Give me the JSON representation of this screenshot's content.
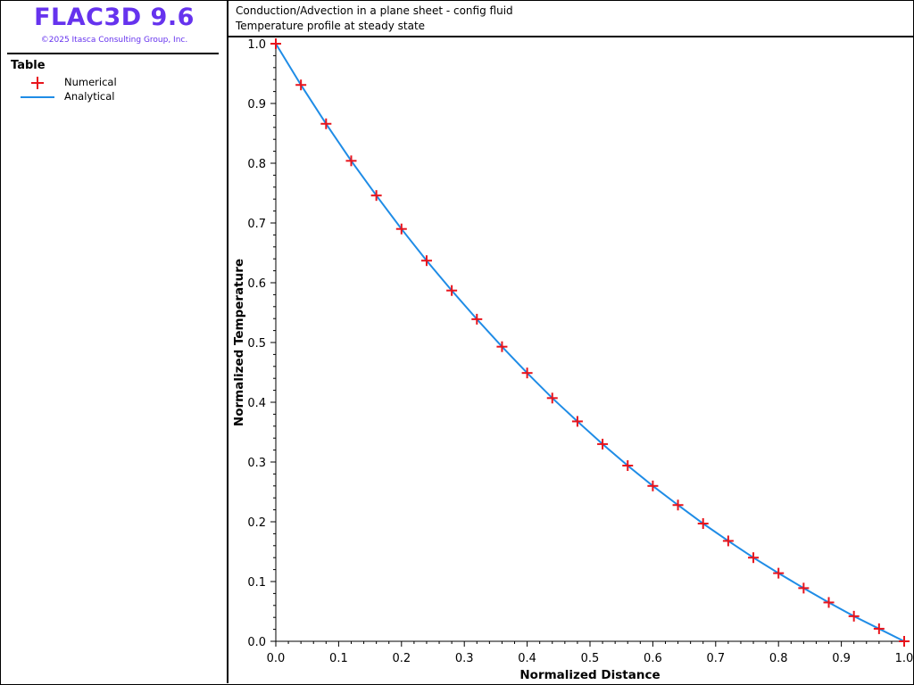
{
  "brand": {
    "title": "FLAC3D 9.6",
    "copyright": "©2025 Itasca Consulting Group, Inc.",
    "color": "#6633ee"
  },
  "header": {
    "title": "Conduction/Advection in a plane sheet - config fluid",
    "subtitle": "Temperature profile at steady state"
  },
  "legend": {
    "heading": "Table",
    "items": [
      {
        "label": "Numerical",
        "symbol": "plus",
        "color": "#e8141c"
      },
      {
        "label": "Analytical",
        "symbol": "line",
        "color": "#1f8ce6"
      }
    ]
  },
  "chart_data": {
    "type": "line",
    "xlabel": "Normalized Distance",
    "ylabel": "Normalized Temperature",
    "xlim": [
      0,
      1
    ],
    "ylim": [
      0,
      1
    ],
    "x_ticks": [
      "0.0",
      "0.1",
      "0.2",
      "0.3",
      "0.4",
      "0.5",
      "0.6",
      "0.7",
      "0.8",
      "0.9",
      "1.0"
    ],
    "y_ticks": [
      "0.0",
      "0.1",
      "0.2",
      "0.3",
      "0.4",
      "0.5",
      "0.6",
      "0.7",
      "0.8",
      "0.9",
      "1.0"
    ],
    "grid": false,
    "series": [
      {
        "name": "Numerical",
        "marker": "plus",
        "color": "#e8141c",
        "x": [
          0.0,
          0.04,
          0.08,
          0.12,
          0.16,
          0.2,
          0.24,
          0.28,
          0.32,
          0.36,
          0.4,
          0.44,
          0.48,
          0.52,
          0.56,
          0.6,
          0.64,
          0.68,
          0.72,
          0.76,
          0.8,
          0.84,
          0.88,
          0.92,
          0.96,
          1.0
        ],
        "y": [
          1.0,
          0.931,
          0.866,
          0.804,
          0.746,
          0.69,
          0.637,
          0.587,
          0.539,
          0.493,
          0.449,
          0.407,
          0.368,
          0.33,
          0.294,
          0.26,
          0.228,
          0.197,
          0.168,
          0.14,
          0.114,
          0.089,
          0.065,
          0.042,
          0.021,
          0.0
        ]
      },
      {
        "name": "Analytical",
        "marker": "none",
        "color": "#1f8ce6",
        "x": [
          0.0,
          0.04,
          0.08,
          0.12,
          0.16,
          0.2,
          0.24,
          0.28,
          0.32,
          0.36,
          0.4,
          0.44,
          0.48,
          0.52,
          0.56,
          0.6,
          0.64,
          0.68,
          0.72,
          0.76,
          0.8,
          0.84,
          0.88,
          0.92,
          0.96,
          1.0
        ],
        "y": [
          1.0,
          0.931,
          0.866,
          0.804,
          0.746,
          0.69,
          0.637,
          0.587,
          0.539,
          0.493,
          0.449,
          0.407,
          0.368,
          0.33,
          0.294,
          0.26,
          0.228,
          0.197,
          0.168,
          0.14,
          0.114,
          0.089,
          0.065,
          0.042,
          0.021,
          0.0
        ]
      }
    ]
  }
}
